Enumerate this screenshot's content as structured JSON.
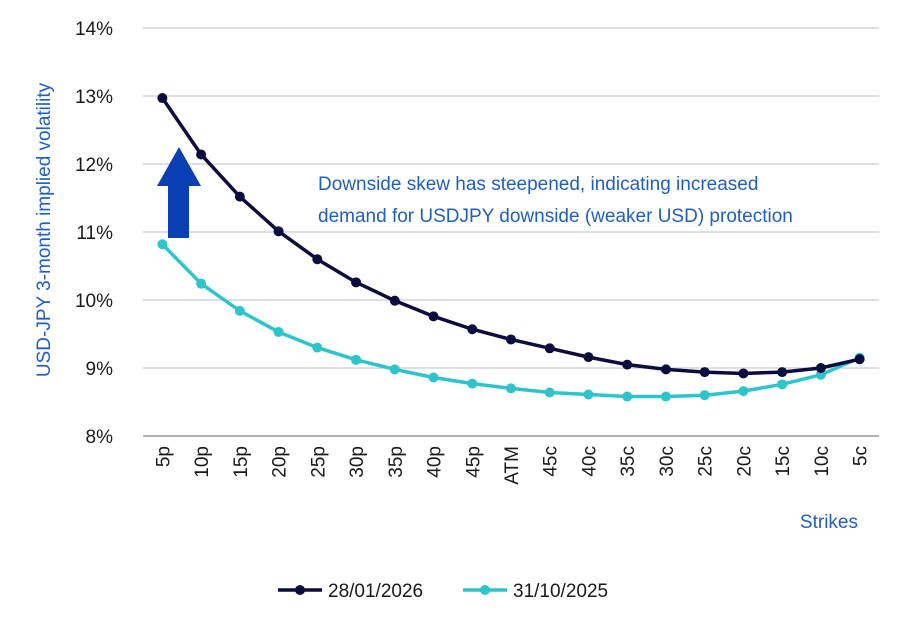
{
  "chart_data": {
    "type": "line",
    "title": "",
    "xlabel": "Strikes",
    "ylabel": "USD-JPY 3-month implied volatility",
    "categories": [
      "5p",
      "10p",
      "15p",
      "20p",
      "25p",
      "30p",
      "35p",
      "40p",
      "45p",
      "ATM",
      "45c",
      "40c",
      "35c",
      "30c",
      "25c",
      "20c",
      "15c",
      "10c",
      "5c"
    ],
    "ylim": [
      8,
      14
    ],
    "yticks": [
      8,
      9,
      10,
      11,
      12,
      13,
      14
    ],
    "ytick_format": "%",
    "grid": true,
    "legend_position": "bottom",
    "annotation": {
      "lines": [
        "Downside skew has steepened, indicating increased",
        "demand for USDJPY downside (weaker USD) protection"
      ],
      "color": "#1f5fc4"
    },
    "arrow": {
      "direction": "up",
      "color": "#0a3fb3"
    },
    "series": [
      {
        "name": "28/01/2026",
        "color": "#0c0c3f",
        "values": [
          12.97,
          12.14,
          11.52,
          11.01,
          10.6,
          10.26,
          9.99,
          9.76,
          9.57,
          9.42,
          9.29,
          9.16,
          9.05,
          8.98,
          8.94,
          8.92,
          8.94,
          9.0,
          9.13
        ]
      },
      {
        "name": "31/10/2025",
        "color": "#2ec4cc",
        "values": [
          10.82,
          10.24,
          9.84,
          9.53,
          9.3,
          9.12,
          8.98,
          8.86,
          8.77,
          8.7,
          8.64,
          8.61,
          8.58,
          8.58,
          8.6,
          8.66,
          8.76,
          8.9,
          9.15
        ]
      }
    ]
  }
}
